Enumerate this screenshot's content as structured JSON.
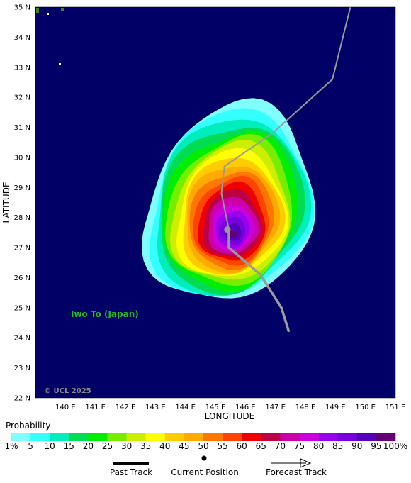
{
  "map": {
    "lat_labels": [
      "35 N",
      "34 N",
      "33 N",
      "32 N",
      "31 N",
      "30 N",
      "29 N",
      "28 N",
      "27 N",
      "26 N",
      "25 N",
      "24 N",
      "23 N",
      "22 N"
    ],
    "lon_labels": [
      "140 E",
      "141 E",
      "142 E",
      "143 E",
      "144 E",
      "145 E",
      "146 E",
      "147 E",
      "148 E",
      "149 E",
      "150 E",
      "151 E"
    ],
    "lat_range": [
      22,
      35
    ],
    "lon_range": [
      139,
      151
    ],
    "xlabel": "LONGITUDE",
    "ylabel": "LATITUDE",
    "place_label": "Iwo To (Japan)",
    "copyright": "© UCL 2025",
    "colors": {
      "ocean": "#000066",
      "land": "#2a8a2a",
      "track": "#9a9a9a",
      "place_label": "#22bb22",
      "copyright": "#8a8a8a"
    }
  },
  "chart_data": {
    "type": "heatmap",
    "description_units": "probability percent strike zone",
    "track": [
      {
        "lon": 149.5,
        "lat": 35.0
      },
      {
        "lon": 148.9,
        "lat": 32.6
      },
      {
        "lon": 146.9,
        "lat": 30.8
      },
      {
        "lon": 145.3,
        "lat": 29.7
      },
      {
        "lon": 145.2,
        "lat": 28.8
      },
      {
        "lon": 145.45,
        "lat": 27.6
      },
      {
        "lon": 145.45,
        "lat": 27.0
      },
      {
        "lon": 146.5,
        "lat": 26.1
      },
      {
        "lon": 147.2,
        "lat": 25.0
      },
      {
        "lon": 147.45,
        "lat": 24.2
      }
    ],
    "current_position": {
      "lon": 145.4,
      "lat": 27.6
    },
    "probability_center": {
      "lon": 145.6,
      "lat": 27.45
    },
    "probability_levels": [
      1,
      5,
      10,
      15,
      20,
      25,
      30,
      35,
      40,
      45,
      50,
      55,
      60,
      65,
      70,
      75,
      80,
      85,
      90,
      95,
      100
    ]
  },
  "legend": {
    "title": "Probability",
    "labels": [
      "1%",
      "5",
      "10",
      "15",
      "20",
      "25",
      "30",
      "35",
      "40",
      "45",
      "50",
      "55",
      "60",
      "65",
      "70",
      "75",
      "80",
      "85",
      "90",
      "95",
      "100%"
    ],
    "colors": [
      "#80ffff",
      "#33ffff",
      "#00eebb",
      "#00dd55",
      "#00ee00",
      "#77ee00",
      "#ccee00",
      "#ffff00",
      "#ffcc00",
      "#ffaa00",
      "#ff7700",
      "#ff4400",
      "#ee0000",
      "#bb0044",
      "#cc00aa",
      "#cc00dd",
      "#9900ee",
      "#7700dd",
      "#5500bb",
      "#660077"
    ]
  },
  "key": {
    "past_track": "Past Track",
    "current_position": "Current Position",
    "forecast_track": "Forecast Track"
  }
}
